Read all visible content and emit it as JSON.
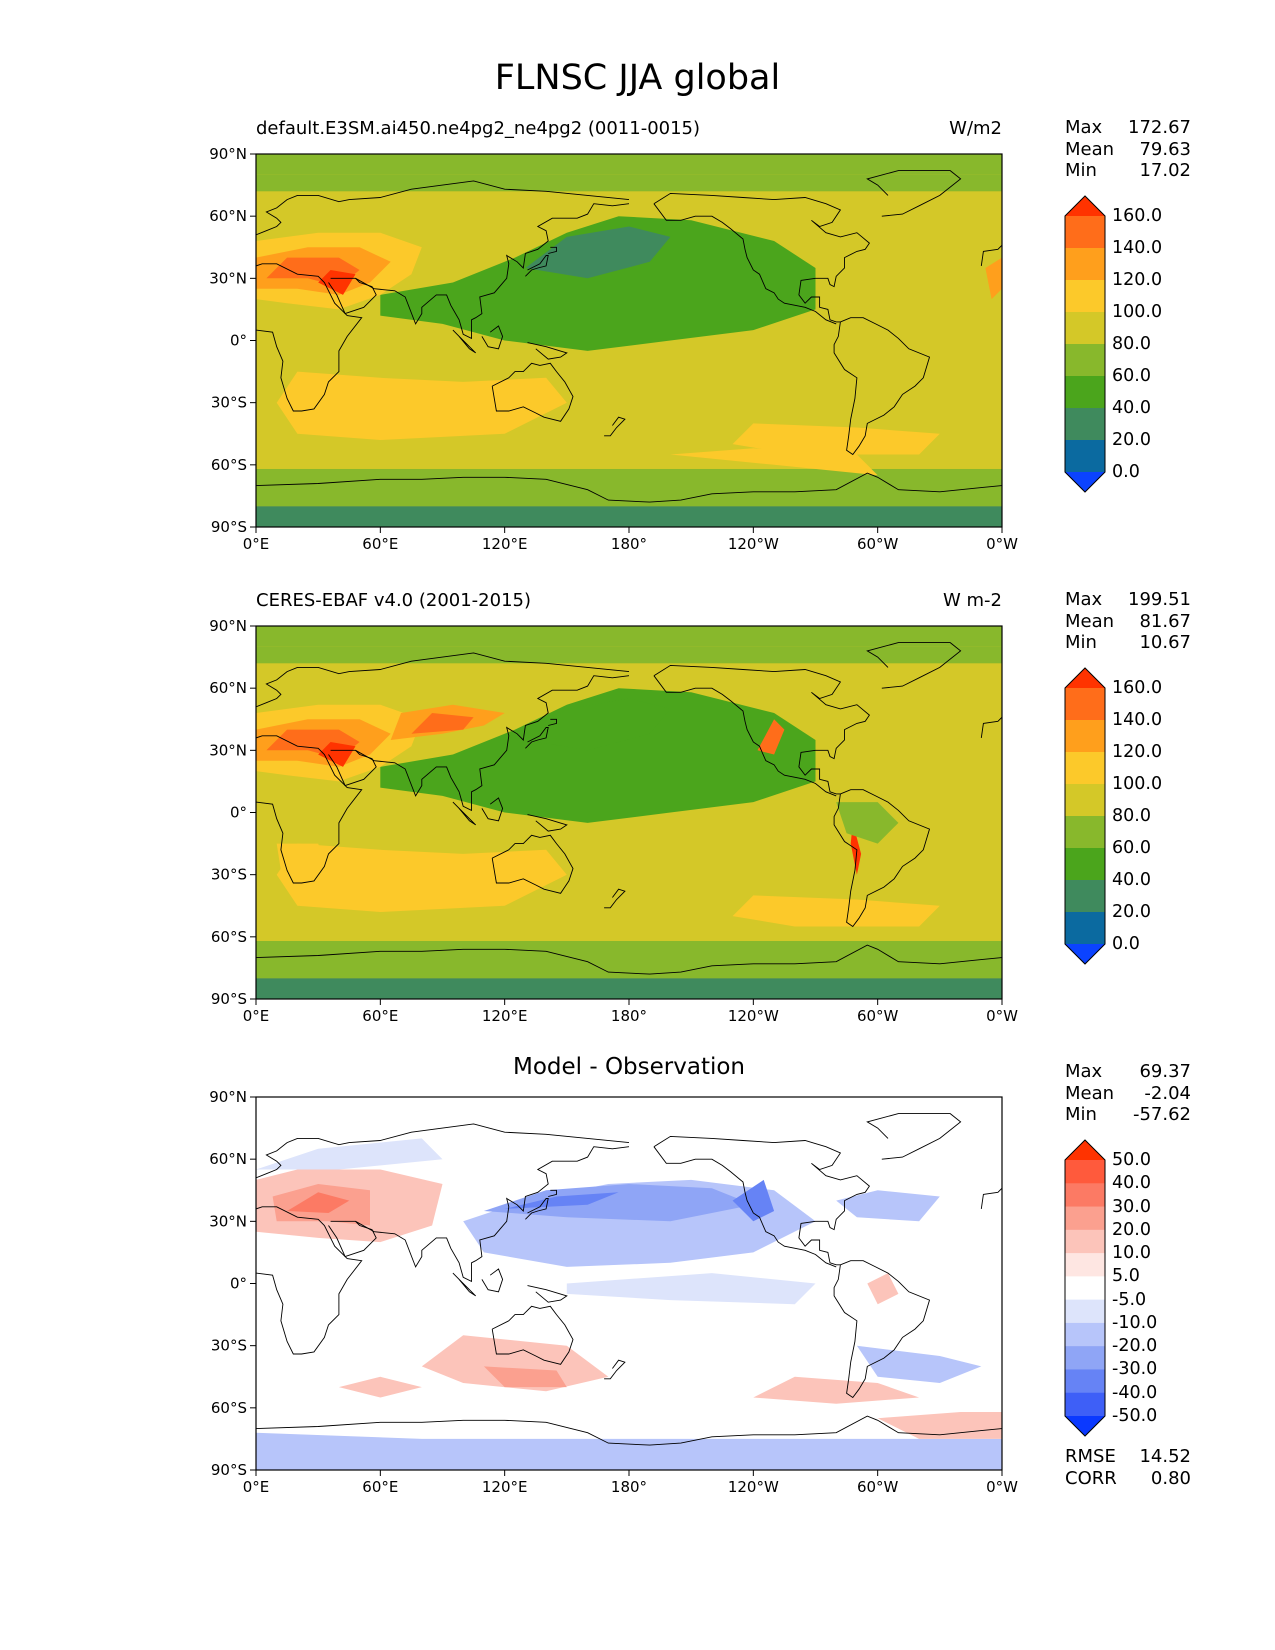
{
  "title": "FLNSC JJA global",
  "panels": [
    {
      "left_label": "default.E3SM.ai450.ne4pg2_ne4pg2 (0011-0015)",
      "center_label": "",
      "units": "W/m2",
      "stats": {
        "max": "172.67",
        "mean": "79.63",
        "min": "17.02"
      },
      "colorbar": {
        "labels": [
          "160.0",
          "140.0",
          "120.0",
          "100.0",
          "80.0",
          "60.0",
          "40.0",
          "20.0",
          "0.0"
        ],
        "colors": [
          "#ff3300",
          "#ff6d1a",
          "#ff9f1c",
          "#fcc92a",
          "#d4c828",
          "#88b82c",
          "#4ba51c",
          "#3f8a5d",
          "#0b6aa0",
          "#0b43ff"
        ]
      }
    },
    {
      "left_label": "CERES-EBAF v4.0 (2001-2015)",
      "center_label": "",
      "units": "W m-2",
      "stats": {
        "max": "199.51",
        "mean": "81.67",
        "min": "10.67"
      },
      "colorbar": {
        "labels": [
          "160.0",
          "140.0",
          "120.0",
          "100.0",
          "80.0",
          "60.0",
          "40.0",
          "20.0",
          "0.0"
        ],
        "colors": [
          "#ff3300",
          "#ff6d1a",
          "#ff9f1c",
          "#fcc92a",
          "#d4c828",
          "#88b82c",
          "#4ba51c",
          "#3f8a5d",
          "#0b6aa0",
          "#0b43ff"
        ]
      }
    },
    {
      "left_label": "",
      "center_label": "Model - Observation",
      "units": "",
      "stats": {
        "max": "69.37",
        "mean": "-2.04",
        "min": "-57.62"
      },
      "colorbar": {
        "labels": [
          "50.0",
          "40.0",
          "30.0",
          "20.0",
          "10.0",
          "5.0",
          "-5.0",
          "-10.0",
          "-20.0",
          "-30.0",
          "-40.0",
          "-50.0"
        ],
        "colors": [
          "#ff3300",
          "#ff5a3c",
          "#fc7a64",
          "#fba08f",
          "#fcc4ba",
          "#fee6e2",
          "#ffffff",
          "#dde4fb",
          "#b7c5fa",
          "#8fa5f6",
          "#6683f5",
          "#3e5ff7",
          "#0b39ff"
        ]
      }
    }
  ],
  "metrics": {
    "rmse_label": "RMSE",
    "rmse": "14.52",
    "corr_label": "CORR",
    "corr": "0.80"
  },
  "axes": {
    "lat_ticks": [
      "90°N",
      "60°N",
      "30°N",
      "0°",
      "30°S",
      "60°S",
      "90°S"
    ],
    "lon_ticks": [
      "0°E",
      "60°E",
      "120°E",
      "180°",
      "120°W",
      "60°W",
      "0°W"
    ]
  },
  "stat_labels": {
    "max": "Max",
    "mean": "Mean",
    "min": "Min"
  }
}
